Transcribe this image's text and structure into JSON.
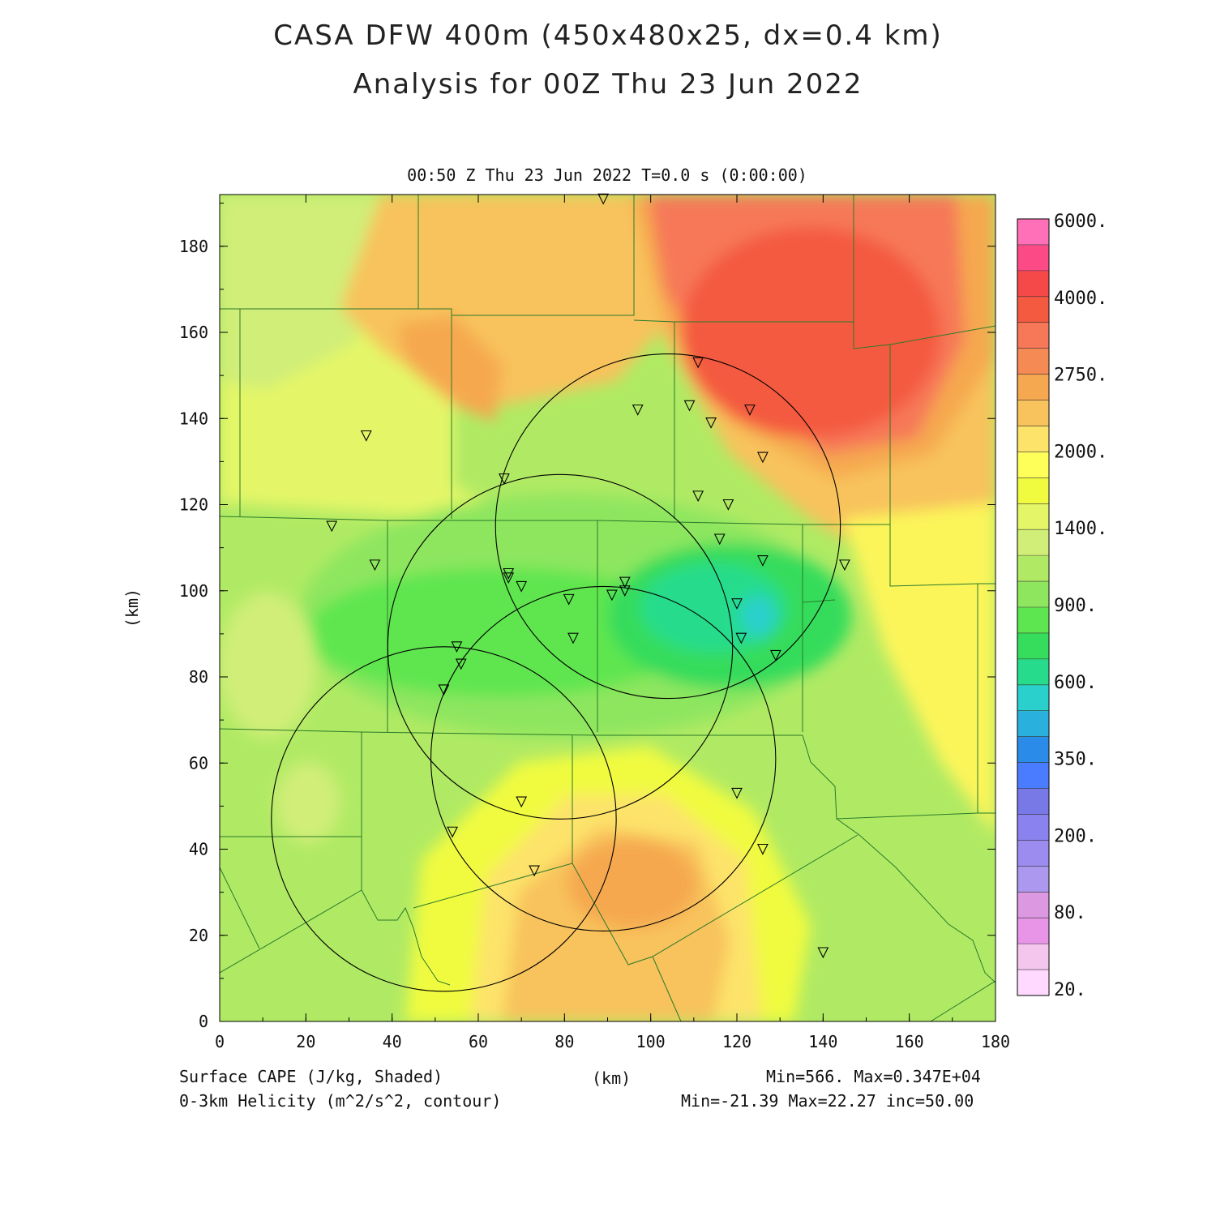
{
  "header": {
    "title_line1": "CASA DFW 400m (450x480x25, dx=0.4 km)",
    "title_line2": "Analysis for 00Z Thu 23 Jun 2022",
    "plot_subtitle": "00:50 Z Thu 23 Jun 2022    T=0.0 s (0:00:00)"
  },
  "axes": {
    "x_label": "(km)",
    "y_label": "(km)",
    "x_range": [
      0,
      180
    ],
    "y_range": [
      0,
      192
    ],
    "x_ticks": [
      "0",
      "20",
      "40",
      "60",
      "80",
      "100",
      "120",
      "140",
      "160",
      "180"
    ],
    "y_ticks": [
      "0",
      "20",
      "40",
      "60",
      "80",
      "100",
      "120",
      "140",
      "160",
      "180"
    ]
  },
  "colorbar": {
    "labels": [
      "6000.",
      "4000.",
      "2750.",
      "2000.",
      "1400.",
      "900.",
      "600.",
      "350.",
      "200.",
      "80.",
      "20."
    ],
    "colors": [
      "#ffd9ff",
      "#f4c6ee",
      "#e895e8",
      "#dc98e0",
      "#ac98ee",
      "#9c8cf0",
      "#8a82ee",
      "#7878e6",
      "#4a7cff",
      "#2a8ce8",
      "#2ab0dc",
      "#2ad0cc",
      "#26dc8c",
      "#36dc5c",
      "#5ee650",
      "#8ee65e",
      "#b0ea64",
      "#d0ee78",
      "#e4f668",
      "#f0fb40",
      "#ffff5a",
      "#fde36a",
      "#f8c25c",
      "#f6a850",
      "#f68a54",
      "#f67858",
      "#f45a40",
      "#f54848",
      "#fc4a86",
      "#ff70b8"
    ]
  },
  "footer": {
    "left_line1": "Surface CAPE (J/kg, Shaded)",
    "left_line2": "0-3km Helicity (m^2/s^2, contour)",
    "center": "(km)",
    "right_line1": "Min=566.  Max=0.347E+04",
    "right_line2": "Min=-21.39  Max=22.27  inc=50.00"
  },
  "chart_data": {
    "type": "heatmap",
    "field": "Surface CAPE",
    "units": "J/kg",
    "min": 566,
    "max": 3470,
    "contour_field": "0-3km Helicity",
    "contour_min": -21.39,
    "contour_max": 22.27,
    "contour_inc": 50.0,
    "radar_rings_km": [
      {
        "cx": 104,
        "cy": 115,
        "r": 40
      },
      {
        "cx": 79,
        "cy": 87,
        "r": 40
      },
      {
        "cx": 89,
        "cy": 61,
        "r": 40
      },
      {
        "cx": 52,
        "cy": 47,
        "r": 40
      }
    ],
    "stations_km": [
      [
        89,
        191
      ],
      [
        111,
        153
      ],
      [
        97,
        142
      ],
      [
        109,
        143
      ],
      [
        114,
        139
      ],
      [
        123,
        142
      ],
      [
        126,
        131
      ],
      [
        34,
        136
      ],
      [
        66,
        126
      ],
      [
        111,
        122
      ],
      [
        118,
        120
      ],
      [
        116,
        112
      ],
      [
        126,
        107
      ],
      [
        145,
        106
      ],
      [
        26,
        115
      ],
      [
        36,
        106
      ],
      [
        67,
        104
      ],
      [
        67,
        103
      ],
      [
        70,
        101
      ],
      [
        81,
        98
      ],
      [
        91,
        99
      ],
      [
        94,
        100
      ],
      [
        94,
        102
      ],
      [
        120,
        97
      ],
      [
        82,
        89
      ],
      [
        121,
        89
      ],
      [
        129,
        85
      ],
      [
        55,
        87
      ],
      [
        56,
        83
      ],
      [
        52,
        77
      ],
      [
        70,
        51
      ],
      [
        120,
        53
      ],
      [
        54,
        44
      ],
      [
        126,
        40
      ],
      [
        73,
        35
      ],
      [
        140,
        16
      ]
    ]
  }
}
